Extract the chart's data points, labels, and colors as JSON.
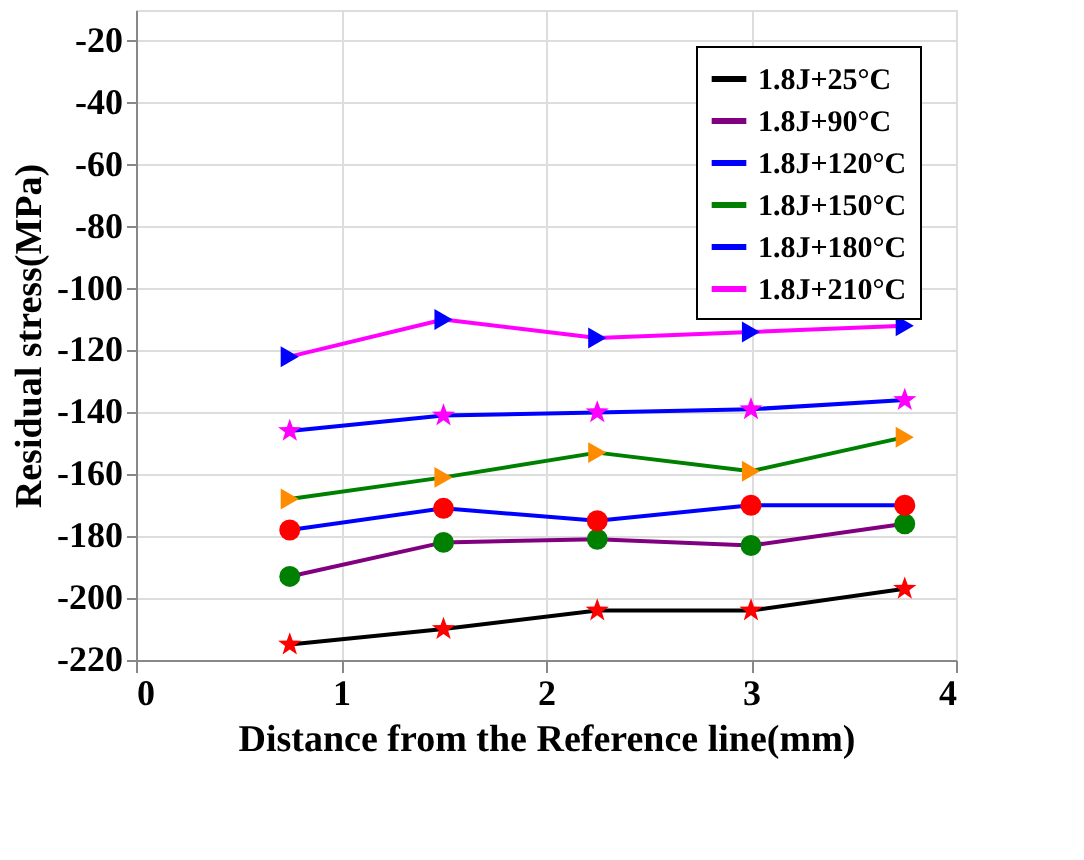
{
  "chart_data": {
    "type": "line",
    "xlabel": "Distance from the Reference line(mm)",
    "ylabel": "Residual stress(MPa)",
    "x": [
      0.75,
      1.5,
      2.25,
      3,
      3.75
    ],
    "xlim": [
      0,
      4
    ],
    "xticks": [
      0,
      1,
      2,
      3,
      4
    ],
    "ylim": [
      -220,
      -10
    ],
    "yticks": [
      -220,
      -200,
      -180,
      -160,
      -140,
      -120,
      -100,
      -80,
      -60,
      -40,
      -20
    ],
    "grid": true,
    "legend": "top right",
    "line_style": "solid",
    "series": [
      {
        "name": "1.8J+25°C",
        "color": "#000000",
        "marker": "star",
        "colors": [
          "#ff0000",
          "#ff0000",
          "#ff0000",
          "#ff0000",
          "#ff0000"
        ],
        "values": [
          -215,
          -210,
          -204,
          -204,
          -197
        ]
      },
      {
        "name": "1.8J+90°C",
        "color": "#800080",
        "marker": "circle",
        "colors": [
          "#008000",
          "#008000",
          "#008000",
          "#008000",
          "#008000"
        ],
        "values": [
          -193,
          -182,
          -181,
          -183,
          -176
        ]
      },
      {
        "name": "1.8J+120°C",
        "color": "#0000ff",
        "marker": "circle",
        "colors": [
          "#ff0000",
          "#ff0000",
          "#ff0000",
          "#ff0000",
          "#ff0000"
        ],
        "values": [
          -178,
          -171,
          -175,
          -170,
          -170
        ]
      },
      {
        "name": "1.8J+150°C",
        "color": "#008000",
        "marker": "triangle",
        "colors": [
          "#ff8c00",
          "#ff8c00",
          "#ff8c00",
          "#ff8c00",
          "#ff8c00"
        ],
        "values": [
          -168,
          -161,
          -153,
          -159,
          -148
        ]
      },
      {
        "name": "1.8J+180°C",
        "color": "#0000ff",
        "marker": "star",
        "colors": [
          "#ff00ff",
          "#ff00ff",
          "#ff00ff",
          "#ff00ff",
          "#ff00ff"
        ],
        "values": [
          -146,
          -141,
          -140,
          -139,
          -136
        ]
      },
      {
        "name": "1.8J+210°C",
        "color": "#ff00ff",
        "marker": "triangle",
        "colors": [
          "#0000ff",
          "#0000ff",
          "#0000ff",
          "#0000ff",
          "#0000ff"
        ],
        "values": [
          -122,
          -110,
          -116,
          -114,
          -112
        ]
      }
    ]
  }
}
